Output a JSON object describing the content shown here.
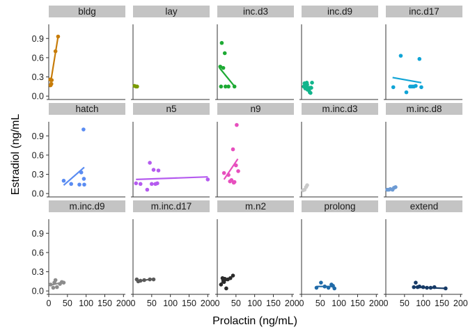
{
  "chart_data": {
    "type": "scatter",
    "title": "",
    "xlabel": "Prolactin (ng/mL)",
    "ylabel": "Estradiol (ng/mL",
    "xlim": [
      0,
      205
    ],
    "ylim": [
      -0.02,
      1.12
    ],
    "x_ticks": [
      0,
      50,
      100,
      150,
      200
    ],
    "x_tick_labels": [
      "0",
      "50",
      "100",
      "150",
      "200"
    ],
    "y_ticks": [
      0.0,
      0.3,
      0.6,
      0.9
    ],
    "y_tick_labels": [
      "0.0",
      "0.3",
      "0.6",
      "0.9"
    ],
    "facet_layout": {
      "rows": 3,
      "cols": 5
    },
    "panel_background": "#ffffff",
    "strip_color": "#c4c4c4",
    "axis_color": "#333333",
    "grid": false,
    "legend": "none",
    "facets": [
      {
        "label": "bldg",
        "color": "#c77c09",
        "points": [
          [
            4,
            0.26
          ],
          [
            5,
            0.17
          ],
          [
            7,
            0.19
          ],
          [
            8,
            0.25
          ],
          [
            18,
            0.7
          ],
          [
            25,
            0.93
          ]
        ],
        "fit": [
          [
            3,
            0.14
          ],
          [
            25,
            0.93
          ]
        ]
      },
      {
        "label": "lay",
        "color": "#7a9a01",
        "points": [
          [
            4,
            0.16
          ],
          [
            8,
            0.15
          ],
          [
            11,
            0.15
          ]
        ],
        "fit": null
      },
      {
        "label": "inc.d3",
        "color": "#1eaa34",
        "points": [
          [
            8,
            0.46
          ],
          [
            12,
            0.83
          ],
          [
            16,
            0.44
          ],
          [
            20,
            0.67
          ],
          [
            10,
            0.15
          ],
          [
            22,
            0.15
          ],
          [
            30,
            0.15
          ],
          [
            46,
            0.15
          ]
        ],
        "fit": [
          [
            6,
            0.44
          ],
          [
            48,
            0.14
          ]
        ]
      },
      {
        "label": "inc.d9",
        "color": "#11b58c",
        "points": [
          [
            6,
            0.15
          ],
          [
            8,
            0.2
          ],
          [
            10,
            0.12
          ],
          [
            12,
            0.16
          ],
          [
            14,
            0.21
          ],
          [
            15,
            0.18
          ],
          [
            18,
            0.13
          ],
          [
            20,
            0.09
          ],
          [
            22,
            0.06
          ],
          [
            24,
            0.05
          ],
          [
            26,
            0.13
          ],
          [
            28,
            0.21
          ],
          [
            16,
            0.1
          ],
          [
            12,
            0.19
          ]
        ],
        "fit": [
          [
            5,
            0.14
          ],
          [
            28,
            0.15
          ]
        ]
      },
      {
        "label": "inc.d17",
        "color": "#10a4d6",
        "points": [
          [
            20,
            0.14
          ],
          [
            40,
            0.63
          ],
          [
            55,
            0.06
          ],
          [
            65,
            0.15
          ],
          [
            70,
            0.15
          ],
          [
            75,
            0.15
          ],
          [
            80,
            0.16
          ],
          [
            90,
            0.58
          ],
          [
            95,
            0.14
          ]
        ],
        "fit": [
          [
            18,
            0.29
          ],
          [
            95,
            0.21
          ]
        ]
      },
      {
        "label": "hatch",
        "color": "#5a8cf2",
        "points": [
          [
            40,
            0.2
          ],
          [
            60,
            0.15
          ],
          [
            82,
            0.14
          ],
          [
            87,
            0.33
          ],
          [
            93,
            1.0
          ],
          [
            94,
            0.23
          ],
          [
            95,
            0.14
          ]
        ],
        "fit": [
          [
            40,
            0.13
          ],
          [
            95,
            0.41
          ]
        ]
      },
      {
        "label": "n5",
        "color": "#b55bef",
        "points": [
          [
            8,
            0.16
          ],
          [
            20,
            0.15
          ],
          [
            38,
            0.06
          ],
          [
            45,
            0.48
          ],
          [
            50,
            0.15
          ],
          [
            55,
            0.37
          ],
          [
            60,
            0.15
          ],
          [
            65,
            0.16
          ],
          [
            68,
            0.36
          ],
          [
            200,
            0.22
          ]
        ],
        "fit": [
          [
            8,
            0.22
          ],
          [
            200,
            0.26
          ]
        ]
      },
      {
        "label": "n9",
        "color": "#e74fbe",
        "points": [
          [
            18,
            0.32
          ],
          [
            30,
            0.29
          ],
          [
            34,
            0.19
          ],
          [
            38,
            0.21
          ],
          [
            42,
            0.69
          ],
          [
            44,
            0.17
          ],
          [
            46,
            0.18
          ],
          [
            50,
            0.44
          ],
          [
            56,
            0.35
          ],
          [
            52,
            1.07
          ]
        ],
        "fit": [
          [
            18,
            0.22
          ],
          [
            55,
            0.54
          ]
        ]
      },
      {
        "label": "m.inc.d3",
        "color": "#c9c9c9",
        "points": [
          [
            4,
            0.05
          ],
          [
            8,
            0.06
          ],
          [
            12,
            0.1
          ],
          [
            15,
            0.13
          ]
        ],
        "fit": [
          [
            4,
            0.05
          ],
          [
            15,
            0.1
          ]
        ]
      },
      {
        "label": "m.inc.d8",
        "color": "#6d9bd4",
        "points": [
          [
            4,
            0.06
          ],
          [
            8,
            0.06
          ],
          [
            12,
            0.07
          ],
          [
            18,
            0.06
          ],
          [
            22,
            0.09
          ],
          [
            26,
            0.1
          ]
        ],
        "fit": [
          [
            4,
            0.05
          ],
          [
            26,
            0.1
          ]
        ]
      },
      {
        "label": "m.inc.d9",
        "color": "#8c8c8c",
        "points": [
          [
            5,
            0.1
          ],
          [
            12,
            0.05
          ],
          [
            15,
            0.13
          ],
          [
            18,
            0.17
          ],
          [
            22,
            0.06
          ],
          [
            30,
            0.11
          ],
          [
            35,
            0.14
          ],
          [
            40,
            0.13
          ]
        ],
        "fit": [
          [
            5,
            0.09
          ],
          [
            40,
            0.14
          ]
        ]
      },
      {
        "label": "m.inc.d17",
        "color": "#5a5a5a",
        "points": [
          [
            10,
            0.18
          ],
          [
            14,
            0.15
          ],
          [
            20,
            0.16
          ],
          [
            30,
            0.17
          ],
          [
            45,
            0.18
          ],
          [
            55,
            0.18
          ]
        ],
        "fit": [
          [
            10,
            0.15
          ],
          [
            55,
            0.19
          ]
        ]
      },
      {
        "label": "m.n2",
        "color": "#2b2b2b",
        "points": [
          [
            10,
            0.1
          ],
          [
            14,
            0.2
          ],
          [
            16,
            0.16
          ],
          [
            18,
            0.14
          ],
          [
            20,
            0.19
          ],
          [
            24,
            0.04
          ],
          [
            28,
            0.18
          ],
          [
            35,
            0.2
          ],
          [
            42,
            0.24
          ]
        ],
        "fit": [
          [
            10,
            0.12
          ],
          [
            42,
            0.23
          ]
        ]
      },
      {
        "label": "prolong",
        "color": "#1f6aa8",
        "points": [
          [
            40,
            0.05
          ],
          [
            52,
            0.13
          ],
          [
            62,
            0.07
          ],
          [
            72,
            0.05
          ],
          [
            80,
            0.1
          ],
          [
            84,
            0.08
          ],
          [
            88,
            0.04
          ]
        ],
        "fit": [
          [
            40,
            0.07
          ],
          [
            88,
            0.07
          ]
        ]
      },
      {
        "label": "extend",
        "color": "#163a66",
        "points": [
          [
            75,
            0.06
          ],
          [
            80,
            0.13
          ],
          [
            85,
            0.06
          ],
          [
            90,
            0.07
          ],
          [
            100,
            0.06
          ],
          [
            110,
            0.05
          ],
          [
            120,
            0.05
          ],
          [
            130,
            0.06
          ],
          [
            160,
            0.04
          ]
        ],
        "fit": [
          [
            75,
            0.06
          ],
          [
            160,
            0.04
          ]
        ]
      }
    ]
  }
}
